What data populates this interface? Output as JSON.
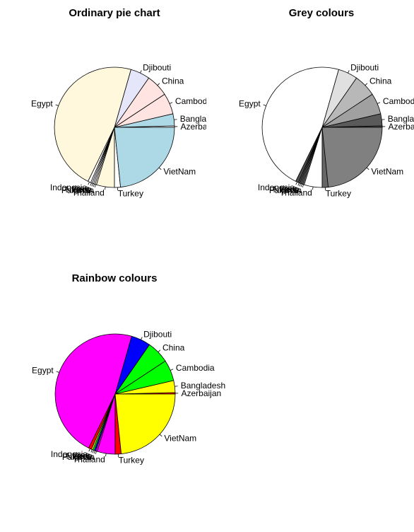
{
  "chart_data": [
    {
      "type": "pie",
      "title": "Ordinary pie chart",
      "palette": "pastel",
      "categories": [
        "Azerbaijan",
        "Bangladesh",
        "Cambodia",
        "China",
        "Djibouti",
        "Egypt",
        "Indonesia",
        "Iraq",
        "Laos",
        "Nigeria",
        "Pakistan",
        "Thailand",
        "Turkey",
        "VietNam"
      ],
      "values": [
        1,
        8,
        14,
        15,
        13,
        117,
        2,
        1,
        1,
        1,
        1,
        12,
        4,
        58
      ],
      "colors": [
        "#ffffff",
        "#add8e6",
        "#ffe4e1",
        "#ffe4e1",
        "#e6e6fa",
        "#fff8dc",
        "#ffffff",
        "#ffffff",
        "#ffffff",
        "#ffffff",
        "#ffffff",
        "#fff8dc",
        "#ffffff",
        "#add8e6"
      ]
    },
    {
      "type": "pie",
      "title": "Grey colours",
      "palette": "grey",
      "categories": [
        "Azerbaijan",
        "Bangladesh",
        "Cambodia",
        "China",
        "Djibouti",
        "Egypt",
        "Indonesia",
        "Iraq",
        "Laos",
        "Nigeria",
        "Pakistan",
        "Thailand",
        "Turkey",
        "VietNam"
      ],
      "values": [
        1,
        8,
        14,
        15,
        13,
        117,
        2,
        1,
        1,
        1,
        1,
        12,
        4,
        58
      ],
      "colors": [
        "#4d4d4d",
        "#5a5a5a",
        "#a0a0a0",
        "#b8b8b8",
        "#e0e0e0",
        "#ffffff",
        "#4d4d4d",
        "#595959",
        "#666666",
        "#737373",
        "#808080",
        "#ffffff",
        "#666666",
        "#808080"
      ]
    },
    {
      "type": "pie",
      "title": "Rainbow colours",
      "palette": "rainbow",
      "categories": [
        "Azerbaijan",
        "Bangladesh",
        "Cambodia",
        "China",
        "Djibouti",
        "Egypt",
        "Indonesia",
        "Iraq",
        "Laos",
        "Nigeria",
        "Pakistan",
        "Thailand",
        "Turkey",
        "VietNam"
      ],
      "values": [
        1,
        8,
        14,
        15,
        13,
        117,
        2,
        1,
        1,
        1,
        1,
        12,
        4,
        58
      ],
      "colors": [
        "#ff0000",
        "#ffff00",
        "#00ff00",
        "#00ff00",
        "#0000ff",
        "#ff00ff",
        "#ff0000",
        "#ffff00",
        "#00ff00",
        "#0000ff",
        "#ff00ff",
        "#ff00ff",
        "#ff0000",
        "#ffff00"
      ]
    }
  ],
  "labels": {
    "ordinary": [
      "Azerbaijan",
      "Bangladesh",
      "Cambodia",
      "China",
      "Djibouti",
      "Egypt",
      "Indonesia",
      "Iraq",
      "Laos",
      "Nigeria",
      "Pakistan",
      "Thailand",
      "Turkey",
      "VietNam"
    ]
  }
}
